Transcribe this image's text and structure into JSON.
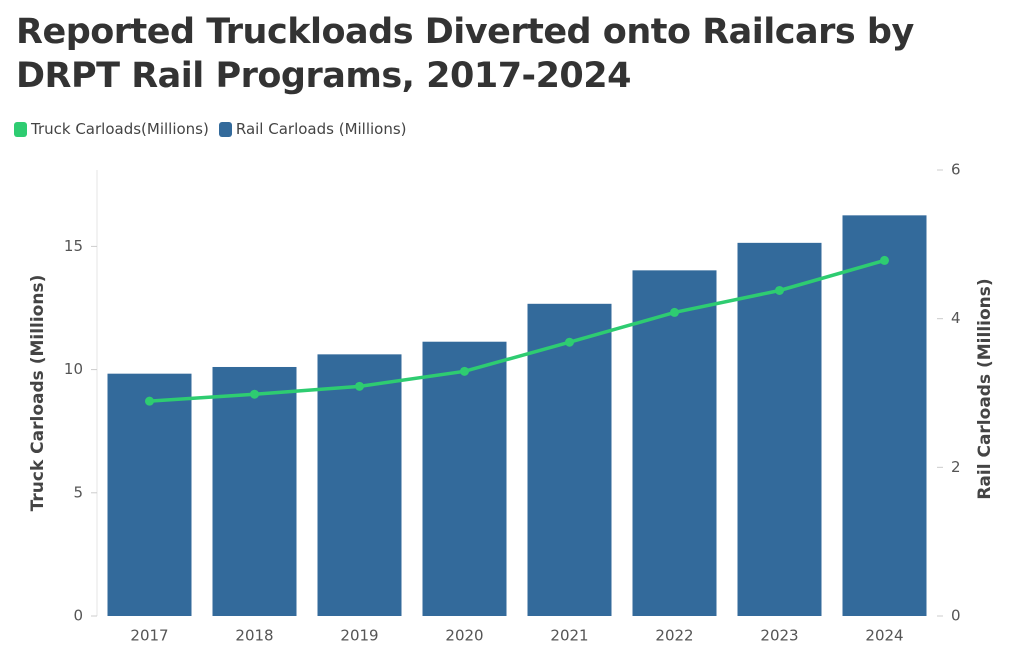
{
  "chart_data": {
    "type": "bar-line",
    "title": "Reported Truckloads Diverted onto Railcars by DRPT Rail Programs, 2017-2024",
    "y_label": "Truck Carloads (Millions)",
    "y2_label": "Rail Carloads (Millions)",
    "categories": [
      "2017",
      "2018",
      "2019",
      "2020",
      "2021",
      "2022",
      "2023",
      "2024"
    ],
    "series": [
      {
        "name": "Truck Carloads(Millions)",
        "type": "line",
        "color": "#2ecc71",
        "values": [
          8.72,
          9.0,
          9.32,
          9.93,
          11.11,
          12.32,
          13.21,
          14.43
        ]
      },
      {
        "name": "Rail Carloads (Millions)",
        "type": "bar",
        "axis": "y2",
        "color": "#336a9b",
        "values": [
          3.26,
          3.35,
          3.52,
          3.69,
          4.2,
          4.65,
          5.02,
          5.39
        ]
      }
    ],
    "ylim": [
      0,
      18.1
    ],
    "yticks": [
      0,
      5,
      10,
      15
    ],
    "y2lim": [
      0,
      6
    ],
    "y2ticks": [
      0,
      2,
      4,
      6
    ],
    "legend": "top-left"
  }
}
